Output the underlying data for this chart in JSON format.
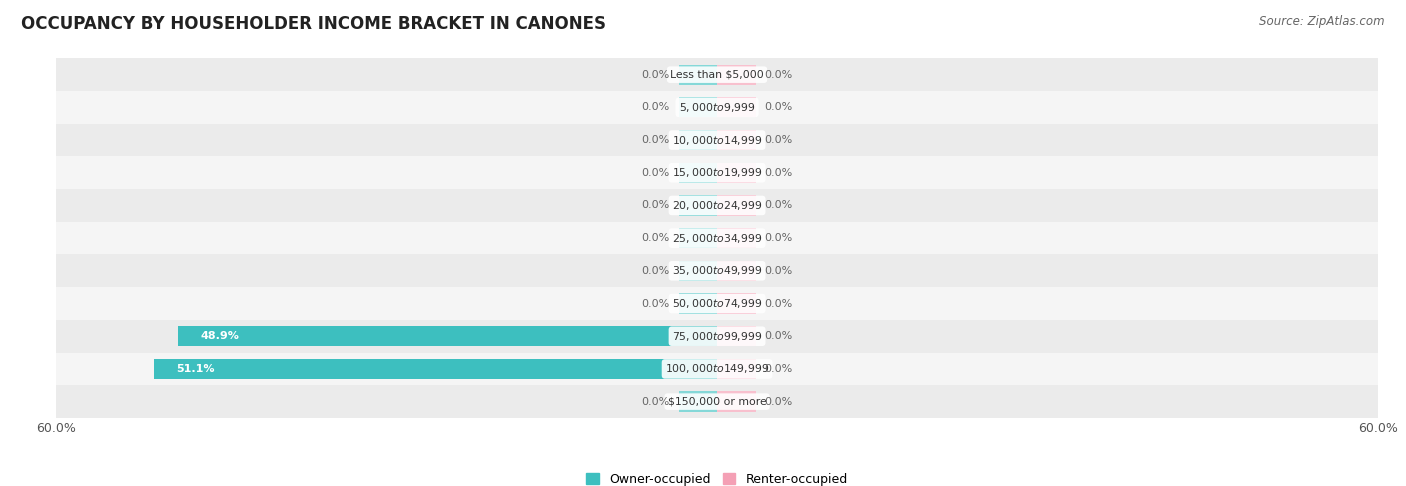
{
  "title": "OCCUPANCY BY HOUSEHOLDER INCOME BRACKET IN CANONES",
  "source": "Source: ZipAtlas.com",
  "categories": [
    "Less than $5,000",
    "$5,000 to $9,999",
    "$10,000 to $14,999",
    "$15,000 to $19,999",
    "$20,000 to $24,999",
    "$25,000 to $34,999",
    "$35,000 to $49,999",
    "$50,000 to $74,999",
    "$75,000 to $99,999",
    "$100,000 to $149,999",
    "$150,000 or more"
  ],
  "owner_values": [
    0.0,
    0.0,
    0.0,
    0.0,
    0.0,
    0.0,
    0.0,
    0.0,
    48.9,
    51.1,
    0.0
  ],
  "renter_values": [
    0.0,
    0.0,
    0.0,
    0.0,
    0.0,
    0.0,
    0.0,
    0.0,
    0.0,
    0.0,
    0.0
  ],
  "owner_color": "#3DBFBF",
  "renter_color": "#F4A0B5",
  "owner_color_stub": "#85D8D8",
  "renter_color_stub": "#F8C0CE",
  "axis_min": -60.0,
  "axis_max": 60.0,
  "axis_tick_labels": [
    "60.0%",
    "60.0%"
  ],
  "row_bg_even": "#ebebeb",
  "row_bg_odd": "#f5f5f5",
  "title_fontsize": 12,
  "source_fontsize": 8.5,
  "bar_height": 0.62,
  "stub_size": 3.5,
  "legend_owner_label": "Owner-occupied",
  "legend_renter_label": "Renter-occupied"
}
